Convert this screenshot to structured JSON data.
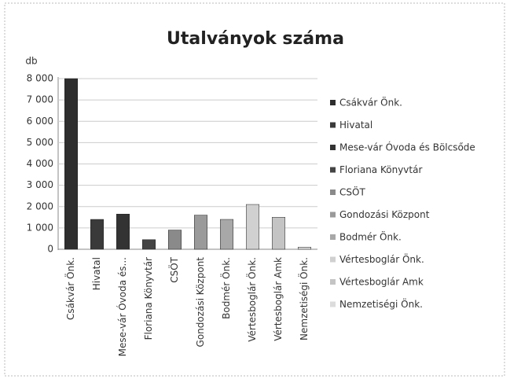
{
  "chart_data": {
    "type": "bar",
    "title": "Utalványok száma",
    "y_label": "db",
    "categories": [
      "Csákvár Önk.",
      "Hivatal",
      "Mese-vár Óvoda és...",
      "Floriana Könyvtár",
      "CSÖT",
      "Gondozási Központ",
      "Bodmér Önk.",
      "Vértesboglár Önk.",
      "Vértesboglár Amk",
      "Nemzetiségi Önk."
    ],
    "values": [
      8000,
      1400,
      1650,
      450,
      900,
      1600,
      1400,
      2100,
      1500,
      100
    ],
    "colors": [
      "#2e2e2e",
      "#3a3a3a",
      "#333333",
      "#444444",
      "#8a8a8a",
      "#9a9a9a",
      "#a8a8a8",
      "#d0d0d0",
      "#c4c4c4",
      "#dcdcdc"
    ],
    "legend": [
      "Csákvár Önk.",
      "Hivatal",
      "Mese-vár Óvoda és Bölcsőde",
      "Floriana Könyvtár",
      "CSÖT",
      "Gondozási Központ",
      "Bodmér Önk.",
      "Vértesboglár Önk.",
      "Vértesboglár Amk",
      "Nemzetiségi Önk."
    ],
    "ylim": [
      0,
      8000
    ],
    "yticks": [
      0,
      {
        "value": 1000,
        "label": "1 000"
      },
      {
        "value": 2000,
        "label": "2 000"
      },
      {
        "value": 3000,
        "label": "3 000"
      },
      {
        "value": 4000,
        "label": "4 000"
      },
      {
        "value": 5000,
        "label": "5 000"
      },
      {
        "value": 6000,
        "label": "6 000"
      },
      {
        "value": 7000,
        "label": "7 000"
      },
      {
        "value": 8000,
        "label": "8 000"
      }
    ],
    "grid": true
  }
}
